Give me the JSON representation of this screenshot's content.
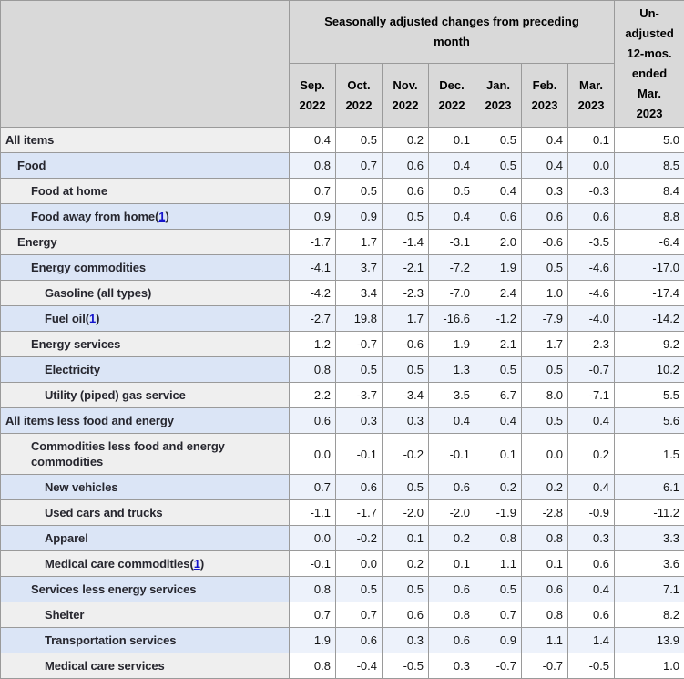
{
  "table": {
    "spanning_header": "Seasonally adjusted changes from preceding month",
    "unadjusted_header": "Un-\nadjusted\n12-mos.\nended\nMar.\n2023",
    "months": [
      "Sep.\n2022",
      "Oct.\n2022",
      "Nov.\n2022",
      "Dec.\n2022",
      "Jan.\n2023",
      "Feb.\n2023",
      "Mar.\n2023"
    ],
    "footnote_open": "(",
    "footnote_close": ")",
    "colors": {
      "header_bg": "#d9d9d9",
      "white_row_stub": "#efefef",
      "white_row_data": "#ffffff",
      "blue_row_stub": "#dbe5f6",
      "blue_row_data": "#edf2fb",
      "border": "#9a9a9a",
      "footnote_link": "#1414cc"
    },
    "rows": [
      {
        "label": "All items",
        "indent": 0,
        "footnote": null,
        "values": [
          "0.4",
          "0.5",
          "0.2",
          "0.1",
          "0.5",
          "0.4",
          "0.1",
          "5.0"
        ]
      },
      {
        "label": "Food",
        "indent": 1,
        "footnote": null,
        "values": [
          "0.8",
          "0.7",
          "0.6",
          "0.4",
          "0.5",
          "0.4",
          "0.0",
          "8.5"
        ]
      },
      {
        "label": "Food at home",
        "indent": 2,
        "footnote": null,
        "values": [
          "0.7",
          "0.5",
          "0.6",
          "0.5",
          "0.4",
          "0.3",
          "-0.3",
          "8.4"
        ]
      },
      {
        "label": "Food away from home",
        "indent": 2,
        "footnote": "1",
        "values": [
          "0.9",
          "0.9",
          "0.5",
          "0.4",
          "0.6",
          "0.6",
          "0.6",
          "8.8"
        ]
      },
      {
        "label": "Energy",
        "indent": 1,
        "footnote": null,
        "values": [
          "-1.7",
          "1.7",
          "-1.4",
          "-3.1",
          "2.0",
          "-0.6",
          "-3.5",
          "-6.4"
        ]
      },
      {
        "label": "Energy commodities",
        "indent": 2,
        "footnote": null,
        "values": [
          "-4.1",
          "3.7",
          "-2.1",
          "-7.2",
          "1.9",
          "0.5",
          "-4.6",
          "-17.0"
        ]
      },
      {
        "label": "Gasoline (all types)",
        "indent": 3,
        "footnote": null,
        "values": [
          "-4.2",
          "3.4",
          "-2.3",
          "-7.0",
          "2.4",
          "1.0",
          "-4.6",
          "-17.4"
        ]
      },
      {
        "label": "Fuel oil",
        "indent": 3,
        "footnote": "1",
        "values": [
          "-2.7",
          "19.8",
          "1.7",
          "-16.6",
          "-1.2",
          "-7.9",
          "-4.0",
          "-14.2"
        ]
      },
      {
        "label": "Energy services",
        "indent": 2,
        "footnote": null,
        "values": [
          "1.2",
          "-0.7",
          "-0.6",
          "1.9",
          "2.1",
          "-1.7",
          "-2.3",
          "9.2"
        ]
      },
      {
        "label": "Electricity",
        "indent": 3,
        "footnote": null,
        "values": [
          "0.8",
          "0.5",
          "0.5",
          "1.3",
          "0.5",
          "0.5",
          "-0.7",
          "10.2"
        ]
      },
      {
        "label": "Utility (piped) gas service",
        "indent": 3,
        "footnote": null,
        "values": [
          "2.2",
          "-3.7",
          "-3.4",
          "3.5",
          "6.7",
          "-8.0",
          "-7.1",
          "5.5"
        ]
      },
      {
        "label": "All items less food and energy",
        "indent": 0,
        "footnote": null,
        "values": [
          "0.6",
          "0.3",
          "0.3",
          "0.4",
          "0.4",
          "0.5",
          "0.4",
          "5.6"
        ]
      },
      {
        "label": "Commodities less food and energy commodities",
        "indent": 2,
        "footnote": null,
        "values": [
          "0.0",
          "-0.1",
          "-0.2",
          "-0.1",
          "0.1",
          "0.0",
          "0.2",
          "1.5"
        ]
      },
      {
        "label": "New vehicles",
        "indent": 3,
        "footnote": null,
        "values": [
          "0.7",
          "0.6",
          "0.5",
          "0.6",
          "0.2",
          "0.2",
          "0.4",
          "6.1"
        ]
      },
      {
        "label": "Used cars and trucks",
        "indent": 3,
        "footnote": null,
        "values": [
          "-1.1",
          "-1.7",
          "-2.0",
          "-2.0",
          "-1.9",
          "-2.8",
          "-0.9",
          "-11.2"
        ]
      },
      {
        "label": "Apparel",
        "indent": 3,
        "footnote": null,
        "values": [
          "0.0",
          "-0.2",
          "0.1",
          "0.2",
          "0.8",
          "0.8",
          "0.3",
          "3.3"
        ]
      },
      {
        "label": "Medical care commodities",
        "indent": 3,
        "footnote": "1",
        "values": [
          "-0.1",
          "0.0",
          "0.2",
          "0.1",
          "1.1",
          "0.1",
          "0.6",
          "3.6"
        ]
      },
      {
        "label": "Services less energy services",
        "indent": 2,
        "footnote": null,
        "values": [
          "0.8",
          "0.5",
          "0.5",
          "0.6",
          "0.5",
          "0.6",
          "0.4",
          "7.1"
        ]
      },
      {
        "label": "Shelter",
        "indent": 3,
        "footnote": null,
        "values": [
          "0.7",
          "0.7",
          "0.6",
          "0.8",
          "0.7",
          "0.8",
          "0.6",
          "8.2"
        ]
      },
      {
        "label": "Transportation services",
        "indent": 3,
        "footnote": null,
        "values": [
          "1.9",
          "0.6",
          "0.3",
          "0.6",
          "0.9",
          "1.1",
          "1.4",
          "13.9"
        ]
      },
      {
        "label": "Medical care services",
        "indent": 3,
        "footnote": null,
        "values": [
          "0.8",
          "-0.4",
          "-0.5",
          "0.3",
          "-0.7",
          "-0.7",
          "-0.5",
          "1.0"
        ]
      }
    ]
  },
  "chart_data": {
    "type": "table",
    "title": "Seasonally adjusted changes from preceding month",
    "column_group_headers": [
      "Seasonally adjusted changes from preceding month",
      "Un-adjusted 12-mos. ended Mar. 2023"
    ],
    "columns": [
      "Sep. 2022",
      "Oct. 2022",
      "Nov. 2022",
      "Dec. 2022",
      "Jan. 2023",
      "Feb. 2023",
      "Mar. 2023",
      "Un-adjusted 12-mos. ended Mar. 2023"
    ],
    "rows": [
      {
        "label": "All items",
        "values": [
          0.4,
          0.5,
          0.2,
          0.1,
          0.5,
          0.4,
          0.1,
          5.0
        ]
      },
      {
        "label": "Food",
        "values": [
          0.8,
          0.7,
          0.6,
          0.4,
          0.5,
          0.4,
          0.0,
          8.5
        ]
      },
      {
        "label": "Food at home",
        "values": [
          0.7,
          0.5,
          0.6,
          0.5,
          0.4,
          0.3,
          -0.3,
          8.4
        ]
      },
      {
        "label": "Food away from home(1)",
        "values": [
          0.9,
          0.9,
          0.5,
          0.4,
          0.6,
          0.6,
          0.6,
          8.8
        ]
      },
      {
        "label": "Energy",
        "values": [
          -1.7,
          1.7,
          -1.4,
          -3.1,
          2.0,
          -0.6,
          -3.5,
          -6.4
        ]
      },
      {
        "label": "Energy commodities",
        "values": [
          -4.1,
          3.7,
          -2.1,
          -7.2,
          1.9,
          0.5,
          -4.6,
          -17.0
        ]
      },
      {
        "label": "Gasoline (all types)",
        "values": [
          -4.2,
          3.4,
          -2.3,
          -7.0,
          2.4,
          1.0,
          -4.6,
          -17.4
        ]
      },
      {
        "label": "Fuel oil(1)",
        "values": [
          -2.7,
          19.8,
          1.7,
          -16.6,
          -1.2,
          -7.9,
          -4.0,
          -14.2
        ]
      },
      {
        "label": "Energy services",
        "values": [
          1.2,
          -0.7,
          -0.6,
          1.9,
          2.1,
          -1.7,
          -2.3,
          9.2
        ]
      },
      {
        "label": "Electricity",
        "values": [
          0.8,
          0.5,
          0.5,
          1.3,
          0.5,
          0.5,
          -0.7,
          10.2
        ]
      },
      {
        "label": "Utility (piped) gas service",
        "values": [
          2.2,
          -3.7,
          -3.4,
          3.5,
          6.7,
          -8.0,
          -7.1,
          5.5
        ]
      },
      {
        "label": "All items less food and energy",
        "values": [
          0.6,
          0.3,
          0.3,
          0.4,
          0.4,
          0.5,
          0.4,
          5.6
        ]
      },
      {
        "label": "Commodities less food and energy commodities",
        "values": [
          0.0,
          -0.1,
          -0.2,
          -0.1,
          0.1,
          0.0,
          0.2,
          1.5
        ]
      },
      {
        "label": "New vehicles",
        "values": [
          0.7,
          0.6,
          0.5,
          0.6,
          0.2,
          0.2,
          0.4,
          6.1
        ]
      },
      {
        "label": "Used cars and trucks",
        "values": [
          -1.1,
          -1.7,
          -2.0,
          -2.0,
          -1.9,
          -2.8,
          -0.9,
          -11.2
        ]
      },
      {
        "label": "Apparel",
        "values": [
          0.0,
          -0.2,
          0.1,
          0.2,
          0.8,
          0.8,
          0.3,
          3.3
        ]
      },
      {
        "label": "Medical care commodities(1)",
        "values": [
          -0.1,
          0.0,
          0.2,
          0.1,
          1.1,
          0.1,
          0.6,
          3.6
        ]
      },
      {
        "label": "Services less energy services",
        "values": [
          0.8,
          0.5,
          0.5,
          0.6,
          0.5,
          0.6,
          0.4,
          7.1
        ]
      },
      {
        "label": "Shelter",
        "values": [
          0.7,
          0.7,
          0.6,
          0.8,
          0.7,
          0.8,
          0.6,
          8.2
        ]
      },
      {
        "label": "Transportation services",
        "values": [
          1.9,
          0.6,
          0.3,
          0.6,
          0.9,
          1.1,
          1.4,
          13.9
        ]
      },
      {
        "label": "Medical care services",
        "values": [
          0.8,
          -0.4,
          -0.5,
          0.3,
          -0.7,
          -0.7,
          -0.5,
          1.0
        ]
      }
    ]
  }
}
